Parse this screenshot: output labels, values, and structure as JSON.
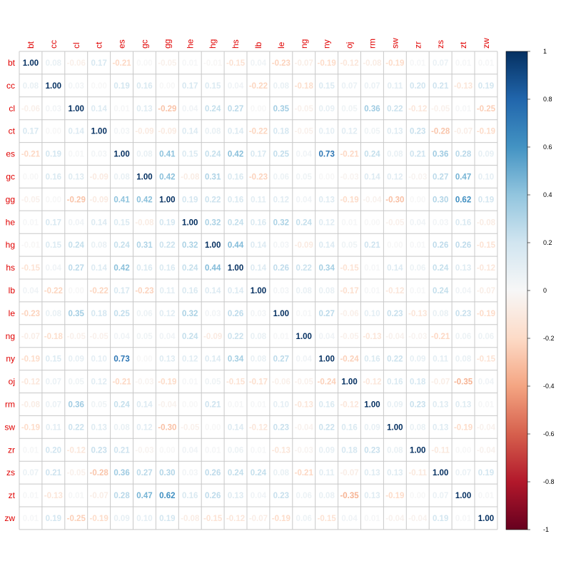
{
  "chart_data": {
    "type": "heatmap",
    "title": "",
    "variables": [
      "bt",
      "cc",
      "cl",
      "ct",
      "es",
      "gc",
      "gg",
      "he",
      "hg",
      "hs",
      "lb",
      "le",
      "ng",
      "ny",
      "oj",
      "rm",
      "sw",
      "zr",
      "zs",
      "zt",
      "zw"
    ],
    "matrix": [
      [
        1.0,
        0.08,
        -0.06,
        0.17,
        -0.21,
        0.0,
        -0.05,
        0.01,
        -0.01,
        -0.15,
        0.04,
        -0.23,
        -0.07,
        -0.19,
        -0.12,
        -0.08,
        -0.19,
        0.01,
        0.07,
        0.01,
        0.01
      ],
      [
        0.08,
        1.0,
        0.03,
        0.0,
        0.19,
        0.16,
        0.0,
        0.17,
        0.15,
        0.04,
        -0.22,
        0.08,
        -0.18,
        0.15,
        0.07,
        0.07,
        0.11,
        0.2,
        0.21,
        -0.13,
        0.19
      ],
      [
        -0.06,
        0.03,
        1.0,
        0.14,
        0.01,
        0.13,
        -0.29,
        0.04,
        0.24,
        0.27,
        0.0,
        0.35,
        -0.05,
        0.09,
        0.05,
        0.36,
        0.22,
        -0.12,
        -0.05,
        0.01,
        -0.25
      ],
      [
        0.17,
        0.0,
        0.14,
        1.0,
        0.03,
        -0.09,
        -0.09,
        0.14,
        0.08,
        0.14,
        -0.22,
        0.18,
        -0.05,
        0.1,
        0.12,
        0.05,
        0.13,
        0.23,
        -0.28,
        -0.07,
        -0.19
      ],
      [
        -0.21,
        0.19,
        0.01,
        0.03,
        1.0,
        0.08,
        0.41,
        0.15,
        0.24,
        0.42,
        0.17,
        0.25,
        0.04,
        0.73,
        -0.21,
        0.24,
        0.08,
        0.21,
        0.36,
        0.28,
        0.09
      ],
      [
        0.0,
        0.16,
        0.13,
        -0.09,
        0.08,
        1.0,
        0.42,
        -0.08,
        0.31,
        0.16,
        -0.23,
        0.06,
        0.05,
        0.0,
        -0.03,
        0.14,
        0.12,
        -0.03,
        0.27,
        0.47,
        0.1
      ],
      [
        -0.05,
        0.0,
        -0.29,
        -0.09,
        0.41,
        0.42,
        1.0,
        0.19,
        0.22,
        0.16,
        0.11,
        0.12,
        0.04,
        0.13,
        -0.19,
        -0.04,
        -0.3,
        0.0,
        0.3,
        0.62,
        0.19
      ],
      [
        0.01,
        0.17,
        0.04,
        0.14,
        0.15,
        -0.08,
        0.19,
        1.0,
        0.32,
        0.24,
        0.16,
        0.32,
        0.24,
        0.12,
        0.01,
        0.0,
        -0.05,
        0.04,
        0.03,
        0.16,
        -0.08
      ],
      [
        -0.01,
        0.15,
        0.24,
        0.08,
        0.24,
        0.31,
        0.22,
        0.32,
        1.0,
        0.44,
        0.14,
        0.03,
        -0.09,
        0.14,
        0.05,
        0.21,
        0.0,
        0.01,
        0.26,
        0.26,
        -0.15
      ],
      [
        -0.15,
        0.04,
        0.27,
        0.14,
        0.42,
        0.16,
        0.16,
        0.24,
        0.44,
        1.0,
        0.14,
        0.26,
        0.22,
        0.34,
        -0.15,
        0.01,
        0.14,
        0.06,
        0.24,
        0.13,
        -0.12
      ],
      [
        0.04,
        -0.22,
        0.0,
        -0.22,
        0.17,
        -0.23,
        0.11,
        0.16,
        0.14,
        0.14,
        1.0,
        0.03,
        0.08,
        0.08,
        -0.17,
        0.01,
        -0.12,
        0.01,
        0.24,
        0.04,
        -0.07
      ],
      [
        -0.23,
        0.08,
        0.35,
        0.18,
        0.25,
        0.06,
        0.12,
        0.32,
        0.03,
        0.26,
        0.03,
        1.0,
        0.01,
        0.27,
        -0.06,
        0.1,
        0.23,
        -0.13,
        0.08,
        0.23,
        -0.19
      ],
      [
        -0.07,
        -0.18,
        -0.05,
        -0.05,
        0.04,
        0.05,
        0.04,
        0.24,
        -0.09,
        0.22,
        0.08,
        0.01,
        1.0,
        0.04,
        -0.05,
        -0.13,
        -0.04,
        -0.03,
        -0.21,
        0.06,
        0.06
      ],
      [
        -0.19,
        0.15,
        0.09,
        0.1,
        0.73,
        0.0,
        0.13,
        0.12,
        0.14,
        0.34,
        0.08,
        0.27,
        0.04,
        1.0,
        -0.24,
        0.16,
        0.22,
        0.09,
        0.11,
        0.08,
        -0.15
      ],
      [
        -0.12,
        0.07,
        0.05,
        0.12,
        -0.21,
        -0.03,
        -0.19,
        0.01,
        0.05,
        -0.15,
        -0.17,
        -0.06,
        -0.05,
        -0.24,
        1.0,
        -0.12,
        0.16,
        0.18,
        -0.07,
        -0.35,
        0.04
      ],
      [
        -0.08,
        0.07,
        0.36,
        0.05,
        0.24,
        0.14,
        -0.04,
        0.0,
        0.21,
        0.01,
        0.01,
        0.1,
        -0.13,
        0.16,
        -0.12,
        1.0,
        0.09,
        0.23,
        0.13,
        0.13,
        0.01
      ],
      [
        -0.19,
        0.11,
        0.22,
        0.13,
        0.08,
        0.12,
        -0.3,
        -0.05,
        0.0,
        0.14,
        -0.12,
        0.23,
        -0.04,
        0.22,
        0.16,
        0.09,
        1.0,
        0.08,
        0.13,
        -0.19,
        -0.04
      ],
      [
        0.01,
        0.2,
        -0.12,
        0.23,
        0.21,
        -0.03,
        0.0,
        0.04,
        0.01,
        0.06,
        0.01,
        -0.13,
        -0.03,
        0.09,
        0.18,
        0.23,
        0.08,
        1.0,
        -0.11,
        0.0,
        -0.04
      ],
      [
        0.07,
        0.21,
        -0.05,
        -0.28,
        0.36,
        0.27,
        0.3,
        0.03,
        0.26,
        0.24,
        0.24,
        0.08,
        -0.21,
        0.11,
        -0.07,
        0.13,
        0.13,
        -0.11,
        1.0,
        0.07,
        0.19
      ],
      [
        0.01,
        -0.13,
        0.01,
        -0.07,
        0.28,
        0.47,
        0.62,
        0.16,
        0.26,
        0.13,
        0.04,
        0.23,
        0.06,
        0.08,
        -0.35,
        0.13,
        -0.19,
        0.0,
        0.07,
        1.0,
        0.01
      ],
      [
        0.01,
        0.19,
        -0.25,
        -0.19,
        0.09,
        0.1,
        0.19,
        -0.08,
        -0.15,
        -0.12,
        -0.07,
        -0.19,
        0.06,
        -0.15,
        0.04,
        0.01,
        -0.04,
        -0.04,
        0.19,
        0.01,
        1.0
      ]
    ],
    "scale": {
      "range": [
        -1,
        1
      ],
      "ticks": [
        "1",
        "0.8",
        "0.6",
        "0.4",
        "0.2",
        "0",
        "-0.2",
        "-0.4",
        "-0.6",
        "-0.8",
        "-1"
      ],
      "colors": {
        "negative_end": "#67001f",
        "neutral": "#f7f7f7",
        "positive_end": "#053061"
      }
    },
    "label_color": "#e00000",
    "grid": true,
    "legend_placement": "right"
  }
}
